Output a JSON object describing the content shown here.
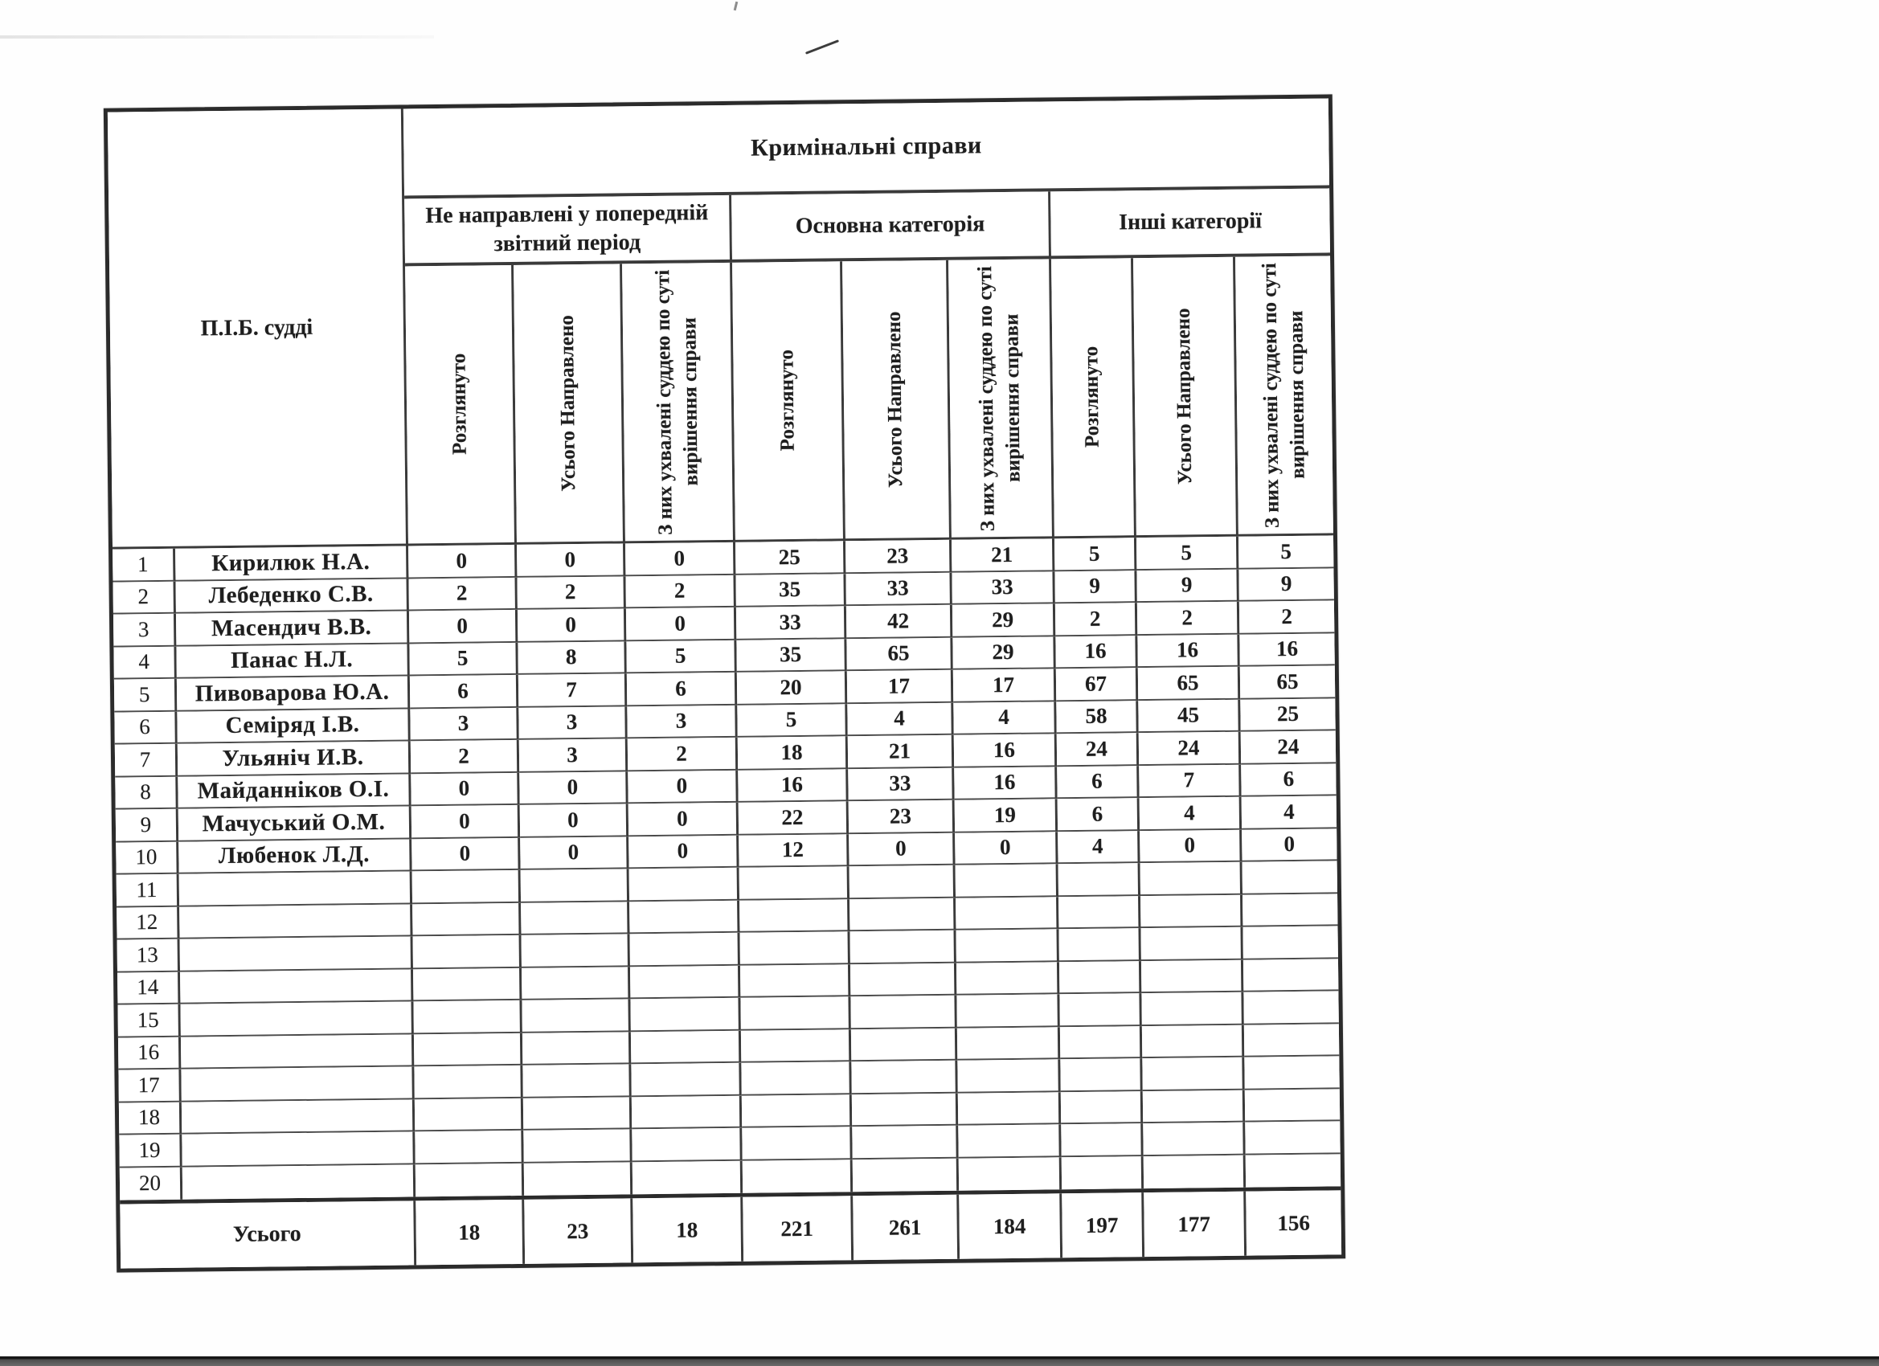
{
  "header": {
    "title": "Кримінальні справи",
    "name_col": "П.І.Б. судді",
    "groups": [
      {
        "label": "Не направлені у попередній звітний період"
      },
      {
        "label": "Основна категорія"
      },
      {
        "label": "Інші категорії"
      }
    ],
    "sub": [
      "Розглянуто",
      "Усього Направлено",
      "З них ухвалені суддею по суті вирішення справи"
    ]
  },
  "table": {
    "rows": [
      {
        "num": "1",
        "name": "Кирилюк Н.А.",
        "values": [
          "0",
          "0",
          "0",
          "25",
          "23",
          "21",
          "5",
          "5",
          "5"
        ]
      },
      {
        "num": "2",
        "name": "Лебеденко С.В.",
        "values": [
          "2",
          "2",
          "2",
          "35",
          "33",
          "33",
          "9",
          "9",
          "9"
        ]
      },
      {
        "num": "3",
        "name": "Масендич В.В.",
        "values": [
          "0",
          "0",
          "0",
          "33",
          "42",
          "29",
          "2",
          "2",
          "2"
        ]
      },
      {
        "num": "4",
        "name": "Панас Н.Л.",
        "values": [
          "5",
          "8",
          "5",
          "35",
          "65",
          "29",
          "16",
          "16",
          "16"
        ]
      },
      {
        "num": "5",
        "name": "Пивоварова Ю.А.",
        "values": [
          "6",
          "7",
          "6",
          "20",
          "17",
          "17",
          "67",
          "65",
          "65"
        ]
      },
      {
        "num": "6",
        "name": "Семіряд І.В.",
        "values": [
          "3",
          "3",
          "3",
          "5",
          "4",
          "4",
          "58",
          "45",
          "25"
        ]
      },
      {
        "num": "7",
        "name": "Ульяніч И.В.",
        "values": [
          "2",
          "3",
          "2",
          "18",
          "21",
          "16",
          "24",
          "24",
          "24"
        ]
      },
      {
        "num": "8",
        "name": "Майданніков О.І.",
        "values": [
          "0",
          "0",
          "0",
          "16",
          "33",
          "16",
          "6",
          "7",
          "6"
        ]
      },
      {
        "num": "9",
        "name": "Мачуський О.М.",
        "values": [
          "0",
          "0",
          "0",
          "22",
          "23",
          "19",
          "6",
          "4",
          "4"
        ]
      },
      {
        "num": "10",
        "name": "Любенок Л.Д.",
        "values": [
          "0",
          "0",
          "0",
          "12",
          "0",
          "0",
          "4",
          "0",
          "0"
        ]
      },
      {
        "num": "11",
        "name": "",
        "values": [
          "",
          "",
          "",
          "",
          "",
          "",
          "",
          "",
          ""
        ]
      },
      {
        "num": "12",
        "name": "",
        "values": [
          "",
          "",
          "",
          "",
          "",
          "",
          "",
          "",
          ""
        ]
      },
      {
        "num": "13",
        "name": "",
        "values": [
          "",
          "",
          "",
          "",
          "",
          "",
          "",
          "",
          ""
        ]
      },
      {
        "num": "14",
        "name": "",
        "values": [
          "",
          "",
          "",
          "",
          "",
          "",
          "",
          "",
          ""
        ]
      },
      {
        "num": "15",
        "name": "",
        "values": [
          "",
          "",
          "",
          "",
          "",
          "",
          "",
          "",
          ""
        ]
      },
      {
        "num": "16",
        "name": "",
        "values": [
          "",
          "",
          "",
          "",
          "",
          "",
          "",
          "",
          ""
        ]
      },
      {
        "num": "17",
        "name": "",
        "values": [
          "",
          "",
          "",
          "",
          "",
          "",
          "",
          "",
          ""
        ]
      },
      {
        "num": "18",
        "name": "",
        "values": [
          "",
          "",
          "",
          "",
          "",
          "",
          "",
          "",
          ""
        ]
      },
      {
        "num": "19",
        "name": "",
        "values": [
          "",
          "",
          "",
          "",
          "",
          "",
          "",
          "",
          ""
        ]
      },
      {
        "num": "20",
        "name": "",
        "values": [
          "",
          "",
          "",
          "",
          "",
          "",
          "",
          "",
          ""
        ]
      }
    ],
    "totals": {
      "label": "Усього",
      "values": [
        "18",
        "23",
        "18",
        "221",
        "261",
        "184",
        "197",
        "177",
        "156"
      ]
    }
  }
}
